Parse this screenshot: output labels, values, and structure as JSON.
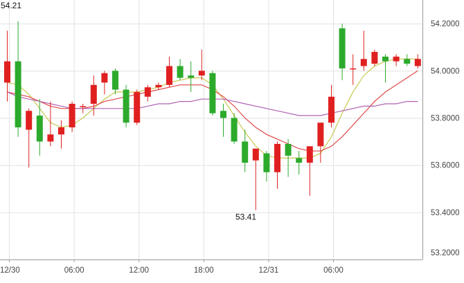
{
  "chart_data": {
    "type": "candlestick",
    "title": "",
    "xlabel": "",
    "ylabel": "",
    "ylim": [
      53.2,
      54.3
    ],
    "y_ticks": [
      "53.2000",
      "53.4000",
      "53.6000",
      "53.8000",
      "54.0000",
      "54.2000"
    ],
    "x_ticks": [
      "12/30",
      "06:00",
      "12:00",
      "18:00",
      "12/31",
      "06:00"
    ],
    "grid": true,
    "annotations": [
      {
        "text": "54.21",
        "value": 54.21
      },
      {
        "text": "53.41",
        "value": 53.41
      }
    ],
    "colors": {
      "up": "#e02020",
      "down": "#2caa2c",
      "ma_short": "#c8c850",
      "ma_mid": "#e04848",
      "ma_long": "#b060b0",
      "grid": "#e2e2e2",
      "axis": "#444444"
    },
    "candles": [
      {
        "open": 53.95,
        "high": 54.17,
        "low": 53.87,
        "close": 54.04
      },
      {
        "open": 54.04,
        "high": 54.21,
        "low": 53.72,
        "close": 53.76
      },
      {
        "open": 53.75,
        "high": 53.84,
        "low": 53.59,
        "close": 53.83
      },
      {
        "open": 53.81,
        "high": 53.88,
        "low": 53.64,
        "close": 53.7
      },
      {
        "open": 53.7,
        "high": 53.87,
        "low": 53.68,
        "close": 53.73
      },
      {
        "open": 53.73,
        "high": 53.79,
        "low": 53.67,
        "close": 53.76
      },
      {
        "open": 53.76,
        "high": 53.87,
        "low": 53.74,
        "close": 53.86
      },
      {
        "open": 53.85,
        "high": 53.86,
        "low": 53.82,
        "close": 53.85
      },
      {
        "open": 53.86,
        "high": 53.98,
        "low": 53.81,
        "close": 53.94
      },
      {
        "open": 53.95,
        "high": 54.0,
        "low": 53.9,
        "close": 53.99
      },
      {
        "open": 54.0,
        "high": 54.01,
        "low": 53.9,
        "close": 53.92
      },
      {
        "open": 53.92,
        "high": 53.94,
        "low": 53.76,
        "close": 53.78
      },
      {
        "open": 53.78,
        "high": 53.92,
        "low": 53.77,
        "close": 53.91
      },
      {
        "open": 53.89,
        "high": 53.94,
        "low": 53.87,
        "close": 53.93
      },
      {
        "open": 53.93,
        "high": 53.95,
        "low": 53.92,
        "close": 53.94
      },
      {
        "open": 53.94,
        "high": 54.06,
        "low": 53.93,
        "close": 54.02
      },
      {
        "open": 54.02,
        "high": 54.05,
        "low": 53.96,
        "close": 53.97
      },
      {
        "open": 53.98,
        "high": 54.04,
        "low": 53.91,
        "close": 53.97
      },
      {
        "open": 53.98,
        "high": 54.09,
        "low": 53.96,
        "close": 54.0
      },
      {
        "open": 53.99,
        "high": 54.0,
        "low": 53.81,
        "close": 53.82
      },
      {
        "open": 53.83,
        "high": 53.86,
        "low": 53.72,
        "close": 53.8
      },
      {
        "open": 53.8,
        "high": 53.82,
        "low": 53.69,
        "close": 53.7
      },
      {
        "open": 53.7,
        "high": 53.75,
        "low": 53.57,
        "close": 53.61
      },
      {
        "open": 53.62,
        "high": 53.67,
        "low": 53.41,
        "close": 53.67
      },
      {
        "open": 53.65,
        "high": 53.66,
        "low": 53.53,
        "close": 53.57
      },
      {
        "open": 53.57,
        "high": 53.7,
        "low": 53.5,
        "close": 53.69
      },
      {
        "open": 53.69,
        "high": 53.71,
        "low": 53.55,
        "close": 53.64
      },
      {
        "open": 53.63,
        "high": 53.66,
        "low": 53.56,
        "close": 53.61
      },
      {
        "open": 53.61,
        "high": 53.68,
        "low": 53.47,
        "close": 53.68
      },
      {
        "open": 53.68,
        "high": 53.78,
        "low": 53.61,
        "close": 53.78
      },
      {
        "open": 53.78,
        "high": 53.94,
        "low": 53.76,
        "close": 53.89
      },
      {
        "open": 54.18,
        "high": 54.2,
        "low": 53.96,
        "close": 54.01
      },
      {
        "open": 54.01,
        "high": 54.07,
        "low": 53.94,
        "close": 54.01
      },
      {
        "open": 54.02,
        "high": 54.17,
        "low": 54.0,
        "close": 54.05
      },
      {
        "open": 54.03,
        "high": 54.09,
        "low": 54.02,
        "close": 54.08
      },
      {
        "open": 54.06,
        "high": 54.07,
        "low": 53.95,
        "close": 54.04
      },
      {
        "open": 54.04,
        "high": 54.07,
        "low": 54.02,
        "close": 54.06
      },
      {
        "open": 54.05,
        "high": 54.07,
        "low": 54.02,
        "close": 54.03
      },
      {
        "open": 54.02,
        "high": 54.07,
        "low": 54.01,
        "close": 54.05
      }
    ],
    "moving_averages": [
      {
        "key": "ma_short",
        "values": [
          53.95,
          53.94,
          53.9,
          53.84,
          53.78,
          53.76,
          53.77,
          53.8,
          53.84,
          53.88,
          53.91,
          53.91,
          53.91,
          53.92,
          53.93,
          53.95,
          53.96,
          53.97,
          53.97,
          53.94,
          53.88,
          53.81,
          53.74,
          53.68,
          53.64,
          53.63,
          53.63,
          53.63,
          53.63,
          53.65,
          53.72,
          53.82,
          53.91,
          53.98,
          54.02,
          54.04,
          54.05,
          54.05,
          54.05
        ]
      },
      {
        "key": "ma_mid",
        "values": [
          53.91,
          53.9,
          53.89,
          53.87,
          53.85,
          53.84,
          53.84,
          53.84,
          53.85,
          53.87,
          53.88,
          53.89,
          53.9,
          53.91,
          53.92,
          53.93,
          53.94,
          53.94,
          53.94,
          53.92,
          53.89,
          53.85,
          53.8,
          53.76,
          53.73,
          53.71,
          53.69,
          53.67,
          53.66,
          53.66,
          53.68,
          53.72,
          53.77,
          53.82,
          53.87,
          53.91,
          53.94,
          53.97,
          54.0
        ]
      },
      {
        "key": "ma_long",
        "values": [
          53.91,
          53.89,
          53.88,
          53.87,
          53.86,
          53.85,
          53.84,
          53.84,
          53.84,
          53.84,
          53.84,
          53.84,
          53.84,
          53.85,
          53.86,
          53.86,
          53.87,
          53.87,
          53.88,
          53.88,
          53.88,
          53.87,
          53.86,
          53.85,
          53.84,
          53.83,
          53.82,
          53.81,
          53.81,
          53.81,
          53.82,
          53.83,
          53.84,
          53.85,
          53.85,
          53.86,
          53.86,
          53.87,
          53.87
        ]
      }
    ]
  }
}
